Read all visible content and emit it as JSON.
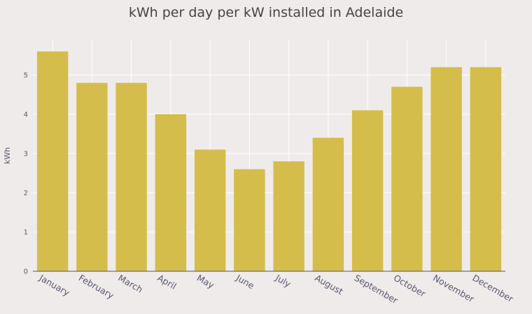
{
  "chart_data": {
    "type": "bar",
    "title": "kWh per day per kW installed in Adelaide",
    "xlabel": "",
    "ylabel": "kWh",
    "categories": [
      "January",
      "February",
      "March",
      "April",
      "May",
      "June",
      "July",
      "August",
      "September",
      "October",
      "November",
      "December"
    ],
    "values": [
      5.6,
      4.8,
      4.8,
      4.0,
      3.1,
      2.6,
      2.8,
      3.4,
      4.1,
      4.7,
      5.2,
      5.2
    ],
    "ylim": [
      0,
      5.75
    ],
    "yticks": [
      0,
      1,
      2,
      3,
      4,
      5
    ],
    "grid": true,
    "colors": {
      "bar": "#d4bd4b",
      "background": "#efebea",
      "grid": "#ffffff",
      "axis": "#555555",
      "text": "#5a5570",
      "title": "#444444"
    }
  }
}
